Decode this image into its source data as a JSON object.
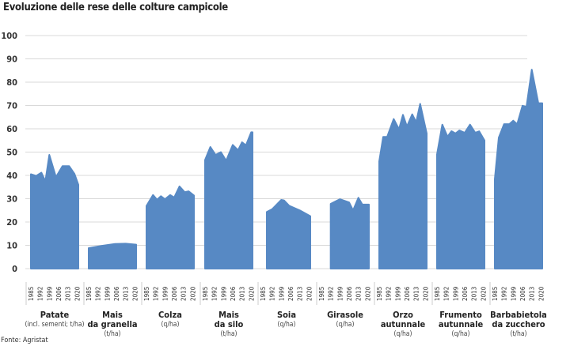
{
  "title": "Evoluzione delle rese delle colture campicole",
  "source": "Fonte: Agristat",
  "chart_data": {
    "type": "area",
    "title": "Evoluzione delle rese delle colture campicole",
    "ylim": [
      0,
      100
    ],
    "yticks": [
      0,
      10,
      20,
      30,
      40,
      50,
      60,
      70,
      80,
      90,
      100
    ],
    "year_ticks": [
      1985,
      1992,
      1999,
      2006,
      2013,
      2020
    ],
    "grid": true,
    "color": "#5789c4",
    "series": [
      {
        "name": [
          "Patate"
        ],
        "unit": "(incl. sementi; t/ha)",
        "points": [
          [
            1985,
            40.5
          ],
          [
            1989,
            39.8
          ],
          [
            1993,
            41.2
          ],
          [
            1996,
            37.5
          ],
          [
            1999,
            48.8
          ],
          [
            2004,
            39.3
          ],
          [
            2009,
            44
          ],
          [
            2014,
            44
          ],
          [
            2018,
            40.7
          ],
          [
            2021,
            36
          ]
        ]
      },
      {
        "name": [
          "Mais",
          "da granella"
        ],
        "unit": "(t/ha)",
        "points": [
          [
            1985,
            8.8
          ],
          [
            1995,
            9.8
          ],
          [
            2005,
            10.6
          ],
          [
            2013,
            10.7
          ],
          [
            2021,
            10.3
          ]
        ]
      },
      {
        "name": [
          "Colza"
        ],
        "unit": "(q/ha)",
        "points": [
          [
            1985,
            26.9
          ],
          [
            1990,
            31.6
          ],
          [
            1993,
            29.6
          ],
          [
            1996,
            31.1
          ],
          [
            1999,
            29.8
          ],
          [
            2003,
            31.6
          ],
          [
            2006,
            30.5
          ],
          [
            2010,
            35.3
          ],
          [
            2014,
            32.8
          ],
          [
            2017,
            33.2
          ],
          [
            2021,
            31.4
          ]
        ]
      },
      {
        "name": [
          "Mais",
          "da silo"
        ],
        "unit": "(t/ha)",
        "points": [
          [
            1985,
            46.6
          ],
          [
            1989,
            52.2
          ],
          [
            1993,
            48.8
          ],
          [
            1997,
            50
          ],
          [
            2001,
            46.3
          ],
          [
            2006,
            53.1
          ],
          [
            2010,
            50.8
          ],
          [
            2013,
            54.2
          ],
          [
            2016,
            52.9
          ],
          [
            2020,
            58.5
          ],
          [
            2021,
            58.5
          ]
        ]
      },
      {
        "name": [
          "Soia"
        ],
        "unit": "(q/ha)",
        "points": [
          [
            1988,
            24.3
          ],
          [
            1992,
            25.5
          ],
          [
            1999,
            29.5
          ],
          [
            2001,
            29.3
          ],
          [
            2005,
            27
          ],
          [
            2013,
            25
          ],
          [
            2021,
            22.5
          ]
        ]
      },
      {
        "name": [
          "Girasole"
        ],
        "unit": "(q/ha)",
        "points": [
          [
            1992,
            27.8
          ],
          [
            1999,
            29.8
          ],
          [
            2006,
            28.4
          ],
          [
            2009,
            25
          ],
          [
            2013,
            30.4
          ],
          [
            2016,
            27.5
          ],
          [
            2021,
            27.5
          ]
        ]
      },
      {
        "name": [
          "Orzo",
          "autunnale"
        ],
        "unit": "(q/ha)",
        "points": [
          [
            1985,
            46
          ],
          [
            1988,
            56.5
          ],
          [
            1991,
            56.5
          ],
          [
            1996,
            64.2
          ],
          [
            2000,
            59.8
          ],
          [
            2003,
            66
          ],
          [
            2006,
            61
          ],
          [
            2010,
            66.2
          ],
          [
            2013,
            62.8
          ],
          [
            2016,
            70.7
          ],
          [
            2021,
            58
          ]
        ]
      },
      {
        "name": [
          "Frumento",
          "autunnale"
        ],
        "unit": "(q/ha)",
        "points": [
          [
            1985,
            49
          ],
          [
            1989,
            61.8
          ],
          [
            1993,
            56.6
          ],
          [
            1996,
            59
          ],
          [
            1999,
            58
          ],
          [
            2002,
            59.3
          ],
          [
            2006,
            58.3
          ],
          [
            2010,
            61.8
          ],
          [
            2014,
            58.3
          ],
          [
            2017,
            58.9
          ],
          [
            2021,
            55
          ]
        ]
      },
      {
        "name": [
          "Barbabietola",
          "da zucchero"
        ],
        "unit": "(t/ha)",
        "points": [
          [
            1985,
            38.4
          ],
          [
            1988,
            56.2
          ],
          [
            1992,
            62
          ],
          [
            1996,
            62
          ],
          [
            1999,
            63.5
          ],
          [
            2002,
            62
          ],
          [
            2006,
            69.9
          ],
          [
            2009,
            69.4
          ],
          [
            2013,
            85.4
          ],
          [
            2018,
            71
          ],
          [
            2021,
            71
          ]
        ]
      }
    ]
  }
}
